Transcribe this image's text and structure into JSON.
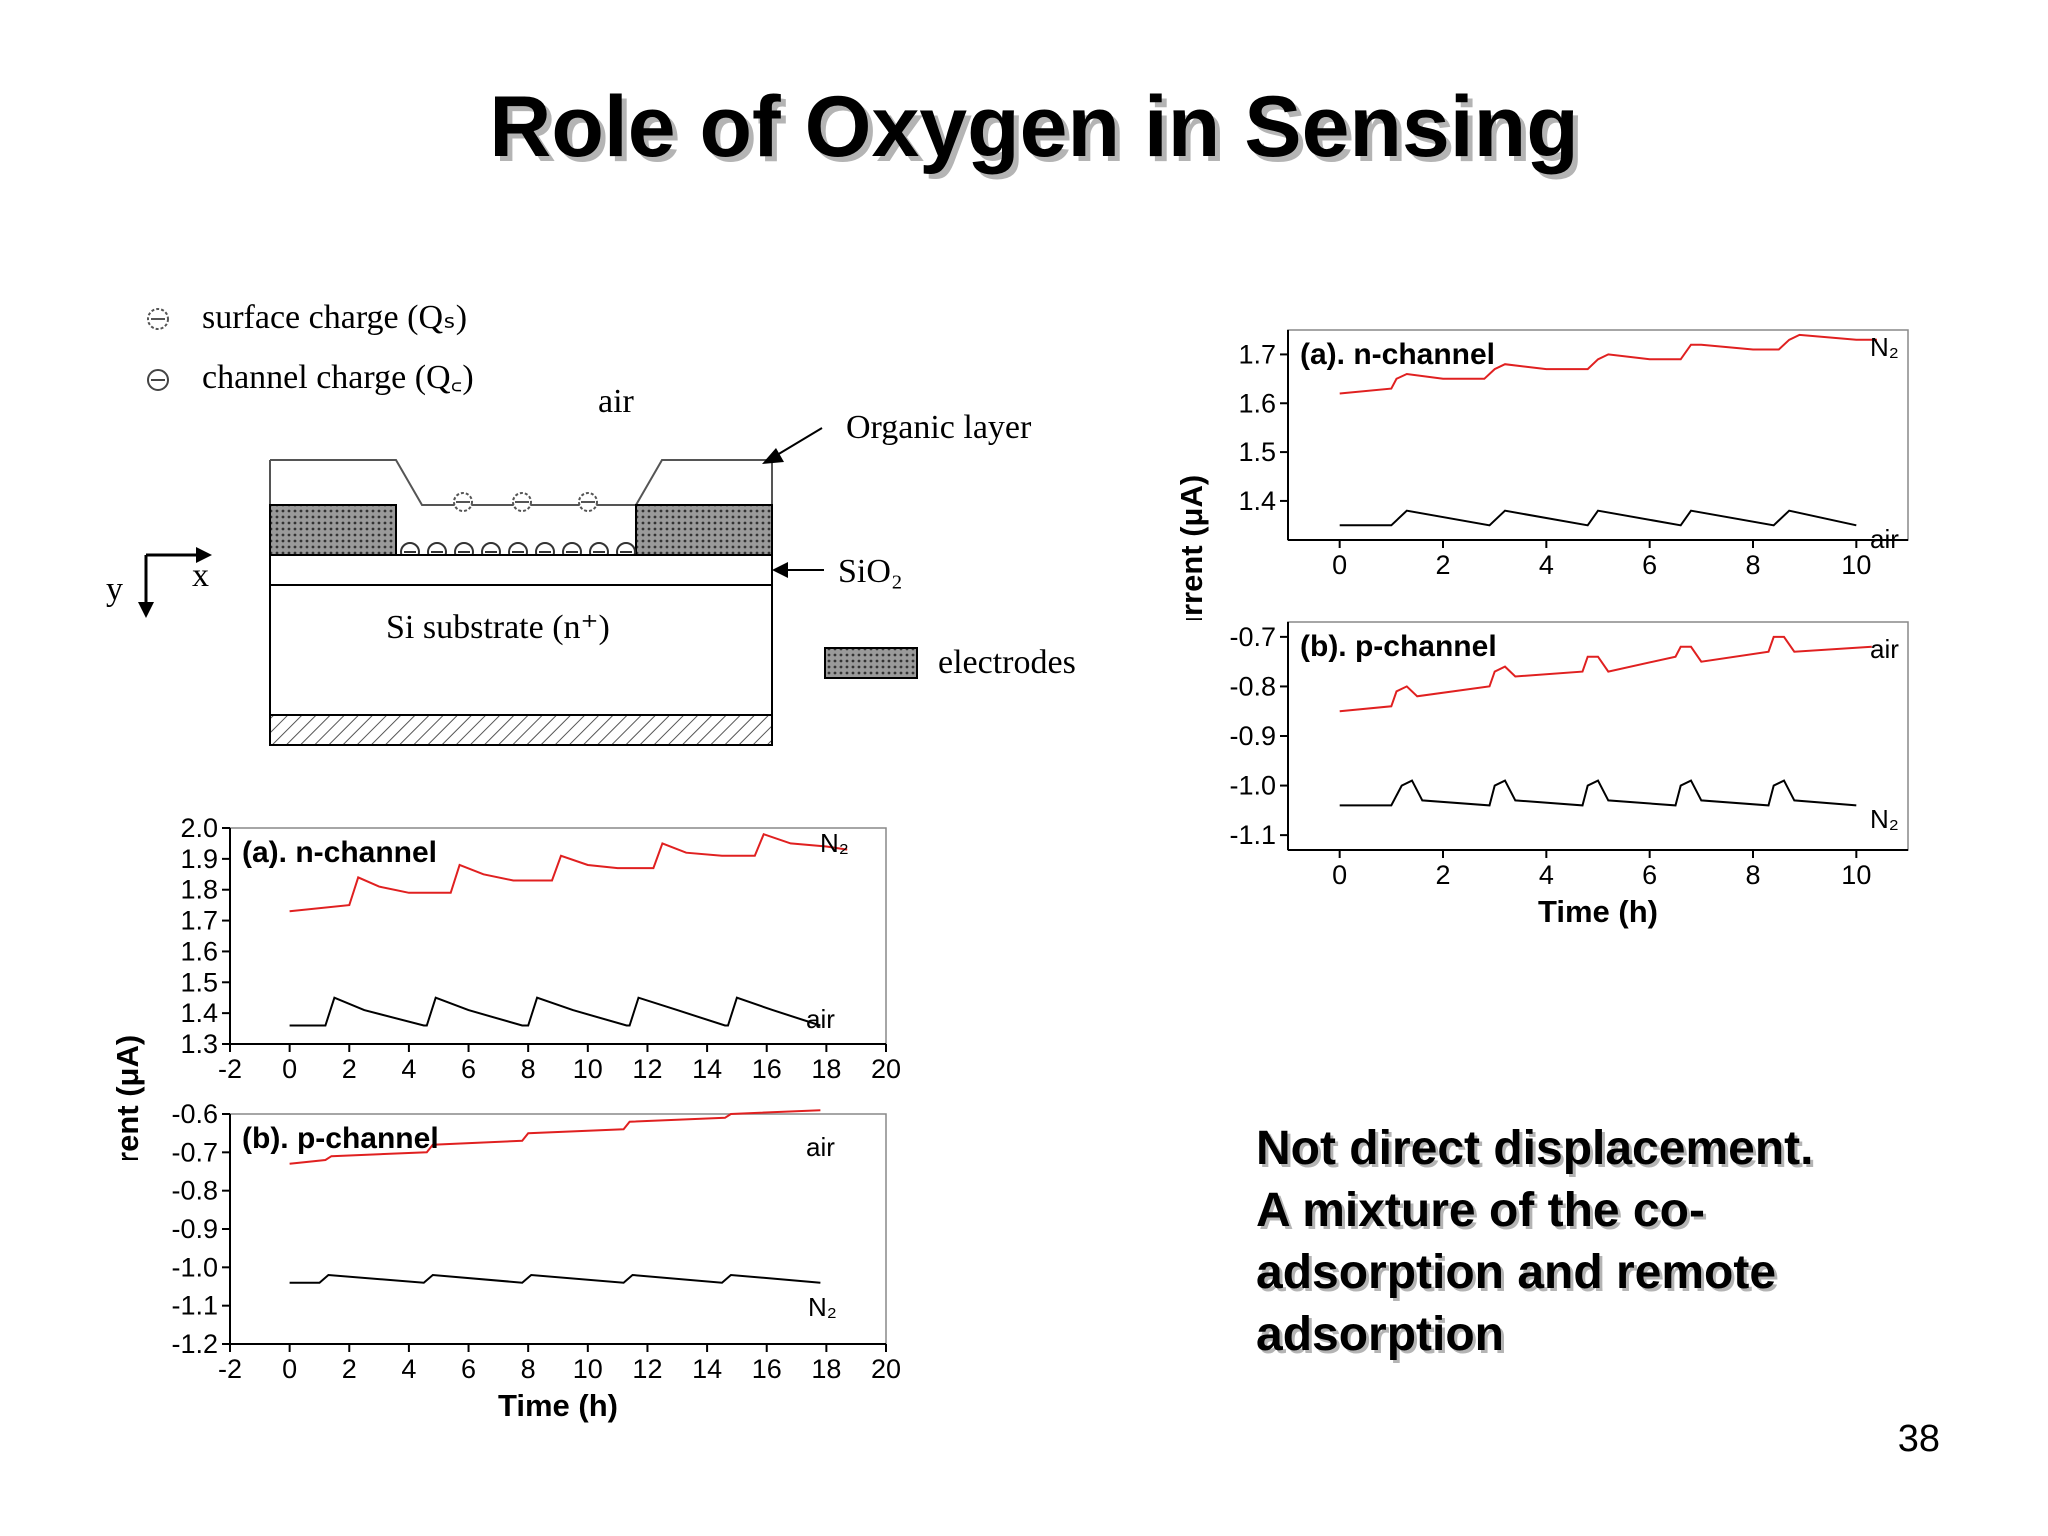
{
  "slide": {
    "title": "Role of Oxygen in Sensing",
    "note_lines": [
      "Not direct displacement.",
      "A mixture of the co-",
      "adsorption and remote",
      "adsorption"
    ],
    "page_number": "38"
  },
  "diagram": {
    "legend_surface": "surface charge (Qₛ)",
    "legend_channel": "channel charge (Q꜀)",
    "label_air": "air",
    "label_organic": "Organic layer",
    "label_sio2": "SiO₂",
    "label_substrate": "Si substrate (n⁺)",
    "label_electrodes": "electrodes",
    "axis_y": "y",
    "axis_x": "x"
  },
  "colors": {
    "n2_trace": "#e02020",
    "air_trace": "#000000",
    "note_shadow": "#b4b4b4"
  },
  "chart_data": [
    {
      "type": "line",
      "panel": "left-top",
      "label": "(a). n-channel",
      "ylabel": "Drain Current (μA)",
      "xlim": [
        -2,
        20
      ],
      "ylim": [
        1.3,
        2.0
      ],
      "xticks": [
        -2,
        0,
        2,
        4,
        6,
        8,
        10,
        12,
        14,
        16,
        18,
        20
      ],
      "yticks": [
        1.3,
        1.4,
        1.5,
        1.6,
        1.7,
        1.8,
        1.9,
        2.0
      ],
      "series": [
        {
          "name": "N₂",
          "color": "#e02020",
          "points": [
            [
              0,
              1.73
            ],
            [
              2,
              1.75
            ],
            [
              2.3,
              1.84
            ],
            [
              3,
              1.81
            ],
            [
              4,
              1.79
            ],
            [
              5.4,
              1.79
            ],
            [
              5.7,
              1.88
            ],
            [
              6.5,
              1.85
            ],
            [
              7.5,
              1.83
            ],
            [
              8.8,
              1.83
            ],
            [
              9.1,
              1.91
            ],
            [
              10,
              1.88
            ],
            [
              11,
              1.87
            ],
            [
              12.2,
              1.87
            ],
            [
              12.5,
              1.95
            ],
            [
              13.3,
              1.92
            ],
            [
              14.5,
              1.91
            ],
            [
              15.6,
              1.91
            ],
            [
              15.9,
              1.98
            ],
            [
              16.8,
              1.95
            ],
            [
              18,
              1.94
            ],
            [
              18.7,
              1.93
            ]
          ]
        },
        {
          "name": "air",
          "color": "#000000",
          "points": [
            [
              0,
              1.36
            ],
            [
              1.2,
              1.36
            ],
            [
              1.5,
              1.45
            ],
            [
              2.5,
              1.41
            ],
            [
              4.5,
              1.36
            ],
            [
              4.6,
              1.36
            ],
            [
              4.9,
              1.45
            ],
            [
              6,
              1.41
            ],
            [
              7.8,
              1.36
            ],
            [
              8,
              1.36
            ],
            [
              8.3,
              1.45
            ],
            [
              9.5,
              1.41
            ],
            [
              11.3,
              1.36
            ],
            [
              11.4,
              1.36
            ],
            [
              11.7,
              1.45
            ],
            [
              13,
              1.41
            ],
            [
              14.6,
              1.36
            ],
            [
              14.7,
              1.36
            ],
            [
              15,
              1.45
            ],
            [
              16.2,
              1.41
            ],
            [
              17.8,
              1.36
            ]
          ]
        }
      ]
    },
    {
      "type": "line",
      "panel": "left-bottom",
      "label": "(b). p-channel",
      "xlabel": "Time (h)",
      "xlim": [
        -2,
        20
      ],
      "ylim": [
        -1.2,
        -0.6
      ],
      "xticks": [
        -2,
        0,
        2,
        4,
        6,
        8,
        10,
        12,
        14,
        16,
        18,
        20
      ],
      "yticks": [
        -1.2,
        -1.1,
        -1.0,
        -0.9,
        -0.8,
        -0.7,
        -0.6
      ],
      "series": [
        {
          "name": "air",
          "color": "#000000",
          "points": [
            [
              0,
              -1.04
            ],
            [
              1,
              -1.04
            ],
            [
              1.3,
              -1.02
            ],
            [
              4.5,
              -1.04
            ],
            [
              4.8,
              -1.02
            ],
            [
              7.8,
              -1.04
            ],
            [
              8.1,
              -1.02
            ],
            [
              11.2,
              -1.04
            ],
            [
              11.5,
              -1.02
            ],
            [
              14.5,
              -1.04
            ],
            [
              14.8,
              -1.02
            ],
            [
              17.8,
              -1.04
            ]
          ]
        },
        {
          "name": "N₂",
          "color": "#e02020",
          "points": [
            [
              0,
              -0.73
            ],
            [
              1.2,
              -0.72
            ],
            [
              1.4,
              -0.71
            ],
            [
              4.6,
              -0.7
            ],
            [
              4.8,
              -0.68
            ],
            [
              7.8,
              -0.67
            ],
            [
              8.0,
              -0.65
            ],
            [
              11.2,
              -0.64
            ],
            [
              11.4,
              -0.62
            ],
            [
              14.6,
              -0.61
            ],
            [
              14.8,
              -0.6
            ],
            [
              17.8,
              -0.59
            ]
          ]
        }
      ]
    },
    {
      "type": "line",
      "panel": "right-top",
      "label": "(a). n-channel",
      "ylabel": "Drain Current (μA)",
      "xlim": [
        -1,
        11
      ],
      "ylim": [
        1.32,
        1.75
      ],
      "xticks": [
        0,
        2,
        4,
        6,
        8,
        10
      ],
      "yticks": [
        1.4,
        1.5,
        1.6,
        1.7
      ],
      "series": [
        {
          "name": "N₂",
          "color": "#e02020",
          "points": [
            [
              0,
              1.62
            ],
            [
              1,
              1.63
            ],
            [
              1.1,
              1.65
            ],
            [
              1.3,
              1.66
            ],
            [
              2,
              1.65
            ],
            [
              2.8,
              1.65
            ],
            [
              3.0,
              1.67
            ],
            [
              3.2,
              1.68
            ],
            [
              4,
              1.67
            ],
            [
              4.8,
              1.67
            ],
            [
              5.0,
              1.69
            ],
            [
              5.2,
              1.7
            ],
            [
              6,
              1.69
            ],
            [
              6.6,
              1.69
            ],
            [
              6.8,
              1.72
            ],
            [
              7,
              1.72
            ],
            [
              8,
              1.71
            ],
            [
              8.5,
              1.71
            ],
            [
              8.7,
              1.73
            ],
            [
              8.9,
              1.74
            ],
            [
              10,
              1.73
            ],
            [
              10.4,
              1.73
            ]
          ]
        },
        {
          "name": "air",
          "color": "#000000",
          "points": [
            [
              0,
              1.35
            ],
            [
              1,
              1.35
            ],
            [
              1.3,
              1.38
            ],
            [
              2.9,
              1.35
            ],
            [
              3.2,
              1.38
            ],
            [
              4.8,
              1.35
            ],
            [
              5.0,
              1.38
            ],
            [
              6.6,
              1.35
            ],
            [
              6.8,
              1.38
            ],
            [
              8.4,
              1.35
            ],
            [
              8.7,
              1.38
            ],
            [
              10,
              1.35
            ]
          ]
        }
      ]
    },
    {
      "type": "line",
      "panel": "right-bottom",
      "label": "(b). p-channel",
      "xlabel": "Time (h)",
      "xlim": [
        -1,
        11
      ],
      "ylim": [
        -1.13,
        -0.67
      ],
      "xticks": [
        0,
        2,
        4,
        6,
        8,
        10
      ],
      "yticks": [
        -1.1,
        -1.0,
        -0.9,
        -0.8,
        -0.7
      ],
      "series": [
        {
          "name": "air",
          "color": "#000000",
          "points": [
            [
              0,
              -1.04
            ],
            [
              1,
              -1.04
            ],
            [
              1.2,
              -1.0
            ],
            [
              1.4,
              -0.99
            ],
            [
              1.6,
              -1.03
            ],
            [
              2.9,
              -1.04
            ],
            [
              3.0,
              -1.0
            ],
            [
              3.2,
              -0.99
            ],
            [
              3.4,
              -1.03
            ],
            [
              4.7,
              -1.04
            ],
            [
              4.8,
              -1.0
            ],
            [
              5.0,
              -0.99
            ],
            [
              5.2,
              -1.03
            ],
            [
              6.5,
              -1.04
            ],
            [
              6.6,
              -1.0
            ],
            [
              6.8,
              -0.99
            ],
            [
              7.0,
              -1.03
            ],
            [
              8.3,
              -1.04
            ],
            [
              8.4,
              -1.0
            ],
            [
              8.6,
              -0.99
            ],
            [
              8.8,
              -1.03
            ],
            [
              10,
              -1.04
            ]
          ]
        },
        {
          "name": "N₂",
          "color": "#e02020",
          "points": [
            [
              0,
              -0.85
            ],
            [
              1,
              -0.84
            ],
            [
              1.1,
              -0.81
            ],
            [
              1.3,
              -0.8
            ],
            [
              1.5,
              -0.82
            ],
            [
              2.9,
              -0.8
            ],
            [
              3.0,
              -0.77
            ],
            [
              3.2,
              -0.76
            ],
            [
              3.4,
              -0.78
            ],
            [
              4.7,
              -0.77
            ],
            [
              4.8,
              -0.74
            ],
            [
              5.0,
              -0.74
            ],
            [
              5.2,
              -0.77
            ],
            [
              6.5,
              -0.74
            ],
            [
              6.6,
              -0.72
            ],
            [
              6.8,
              -0.72
            ],
            [
              7.0,
              -0.75
            ],
            [
              8.3,
              -0.73
            ],
            [
              8.4,
              -0.7
            ],
            [
              8.6,
              -0.7
            ],
            [
              8.8,
              -0.73
            ],
            [
              10.3,
              -0.72
            ]
          ]
        }
      ]
    }
  ],
  "chart_labels": {
    "left_n2": "N₂",
    "left_air_top": "air",
    "left_air_bottom": "air",
    "left_n2_bottom": "N₂",
    "right_n2_top": "N₂",
    "right_air_top": "air",
    "right_air_bottom": "air",
    "right_n2_bottom": "N₂"
  }
}
